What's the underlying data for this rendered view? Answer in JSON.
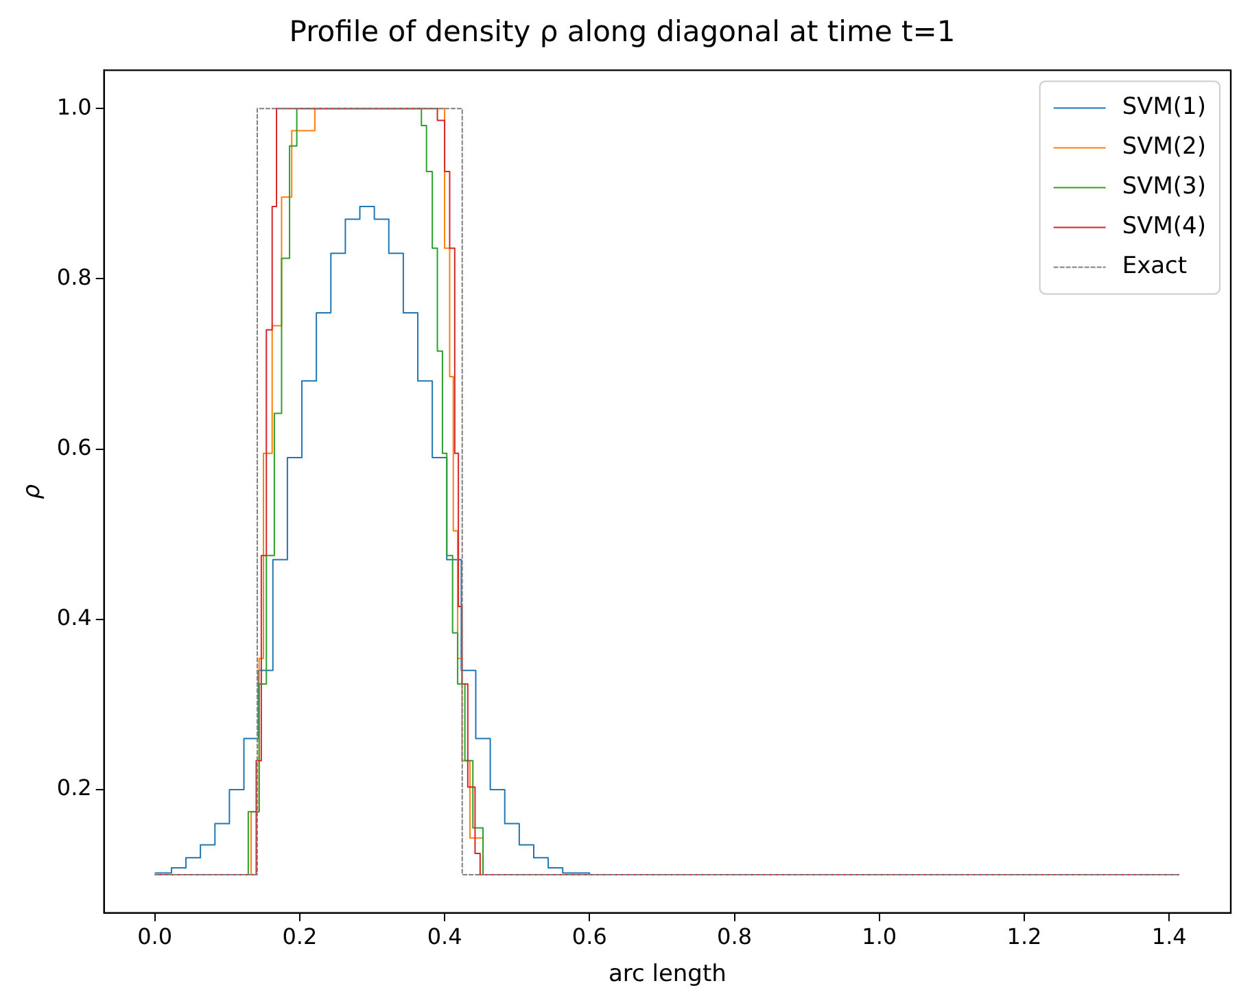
{
  "chart_data": {
    "type": "step",
    "title": "Profile of density ρ along diagonal at time t=1",
    "xlabel": "arc length",
    "ylabel": "ρ",
    "xlim": [
      -0.07,
      1.485
    ],
    "ylim": [
      0.055,
      1.045
    ],
    "xticks": [
      {
        "value": 0,
        "label": "0.0"
      },
      {
        "value": 0.2,
        "label": "0.2"
      },
      {
        "value": 0.4,
        "label": "0.4"
      },
      {
        "value": 0.6,
        "label": "0.6"
      },
      {
        "value": 0.8,
        "label": "0.8"
      },
      {
        "value": 1,
        "label": "1.0"
      },
      {
        "value": 1.2,
        "label": "1.2"
      },
      {
        "value": 1.4,
        "label": "1.4"
      }
    ],
    "yticks": [
      {
        "value": 0.2,
        "label": "0.2"
      },
      {
        "value": 0.4,
        "label": "0.4"
      },
      {
        "value": 0.6,
        "label": "0.6"
      },
      {
        "value": 0.8,
        "label": "0.8"
      },
      {
        "value": 1,
        "label": "1.0"
      }
    ],
    "grid": false,
    "legend": "top right",
    "marker": "none",
    "series": [
      {
        "name": "SVM(1)",
        "color": "#1f77b4",
        "x": [
          0,
          0.023,
          0.043,
          0.063,
          0.083,
          0.103,
          0.123,
          0.143,
          0.163,
          0.183,
          0.203,
          0.223,
          0.243,
          0.263,
          0.283,
          0.303,
          0.323,
          0.343,
          0.363,
          0.383,
          0.403,
          0.423,
          0.443,
          0.463,
          0.483,
          0.503,
          0.523,
          0.543,
          0.563,
          0.6,
          1.414
        ],
        "values": [
          0.102,
          0.108,
          0.12,
          0.135,
          0.16,
          0.2,
          0.26,
          0.34,
          0.47,
          0.59,
          0.68,
          0.76,
          0.83,
          0.87,
          0.885,
          0.87,
          0.83,
          0.76,
          0.68,
          0.59,
          0.47,
          0.34,
          0.26,
          0.2,
          0.16,
          0.135,
          0.12,
          0.108,
          0.102,
          0.1,
          0.1
        ]
      },
      {
        "name": "SVM(2)",
        "color": "#ff7f0e",
        "x": [
          0,
          0.125,
          0.133,
          0.144,
          0.15,
          0.162,
          0.175,
          0.189,
          0.221,
          0.393,
          0.4,
          0.407,
          0.412,
          0.418,
          0.424,
          0.435,
          0.453,
          1.414
        ],
        "values": [
          0.1,
          0.1,
          0.174,
          0.354,
          0.595,
          0.745,
          0.896,
          0.974,
          1,
          1,
          0.836,
          0.685,
          0.504,
          0.354,
          0.234,
          0.143,
          0.1,
          0.1
        ]
      },
      {
        "name": "SVM(3)",
        "color": "#2ca02c",
        "x": [
          0,
          0.115,
          0.129,
          0.144,
          0.154,
          0.165,
          0.175,
          0.186,
          0.196,
          0.361,
          0.368,
          0.375,
          0.383,
          0.39,
          0.397,
          0.403,
          0.411,
          0.418,
          0.428,
          0.439,
          0.453,
          1.414
        ],
        "values": [
          0.1,
          0.1,
          0.174,
          0.324,
          0.475,
          0.642,
          0.824,
          0.956,
          1,
          1,
          0.98,
          0.926,
          0.836,
          0.715,
          0.595,
          0.475,
          0.384,
          0.324,
          0.234,
          0.155,
          0.1,
          0.1
        ]
      },
      {
        "name": "SVM(4)",
        "color": "#d62728",
        "x": [
          0,
          0.122,
          0.14,
          0.147,
          0.154,
          0.162,
          0.168,
          0.368,
          0.39,
          0.4,
          0.407,
          0.414,
          0.419,
          0.424,
          0.432,
          0.442,
          0.449,
          1.414
        ],
        "values": [
          0.1,
          0.1,
          0.234,
          0.475,
          0.74,
          0.885,
          1,
          1,
          0.986,
          0.926,
          0.836,
          0.595,
          0.415,
          0.324,
          0.203,
          0.125,
          0.1,
          0.1
        ]
      },
      {
        "name": "Exact",
        "color": "#808080",
        "line_style": "dashed",
        "x": [
          0,
          0.1414,
          0.4243,
          1.414
        ],
        "values": [
          0.1,
          1,
          0.1,
          0.1
        ]
      }
    ]
  }
}
